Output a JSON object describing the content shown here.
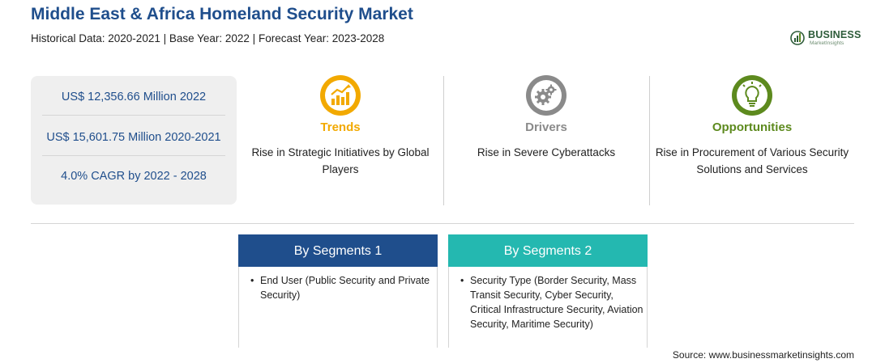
{
  "header": {
    "title": "Middle East & Africa Homeland Security Market",
    "subtitle": "Historical Data: 2020-2021 | Base Year: 2022 | Forecast Year: 2023-2028"
  },
  "logo": {
    "word": "BUSINESS",
    "sub": "MarketInsights"
  },
  "stats": [
    "US$ 12,356.66 Million 2022",
    "US$ 15,601.75 Million 2020-2021",
    "4.0% CAGR by 2022 - 2028"
  ],
  "columns": [
    {
      "heading": "Trends",
      "text": "Rise in Strategic Initiatives by Global Players",
      "icon": "trend-chart-icon",
      "color": "#f2a900"
    },
    {
      "heading": "Drivers",
      "text": "Rise in Severe Cyberattacks",
      "icon": "gears-icon",
      "color": "#8a8a8a"
    },
    {
      "heading": "Opportunities",
      "text": "Rise in Procurement of Various Security Solutions and Services",
      "icon": "lightbulb-icon",
      "color": "#5d8a1e"
    }
  ],
  "segments": [
    {
      "title": "By Segments 1",
      "items": [
        "End User (Public Security and Private Security)"
      ],
      "color": "#1f4e8c"
    },
    {
      "title": "By Segments 2",
      "items": [
        "Security Type (Border Security, Mass Transit Security, Cyber Security, Critical Infrastructure Security, Aviation Security, Maritime Security)"
      ],
      "color": "#24b8b0"
    }
  ],
  "source": "Source: www.businessmarketinsights.com",
  "colors": {
    "title_blue": "#1f4e8c",
    "stats_bg": "#efefef"
  }
}
